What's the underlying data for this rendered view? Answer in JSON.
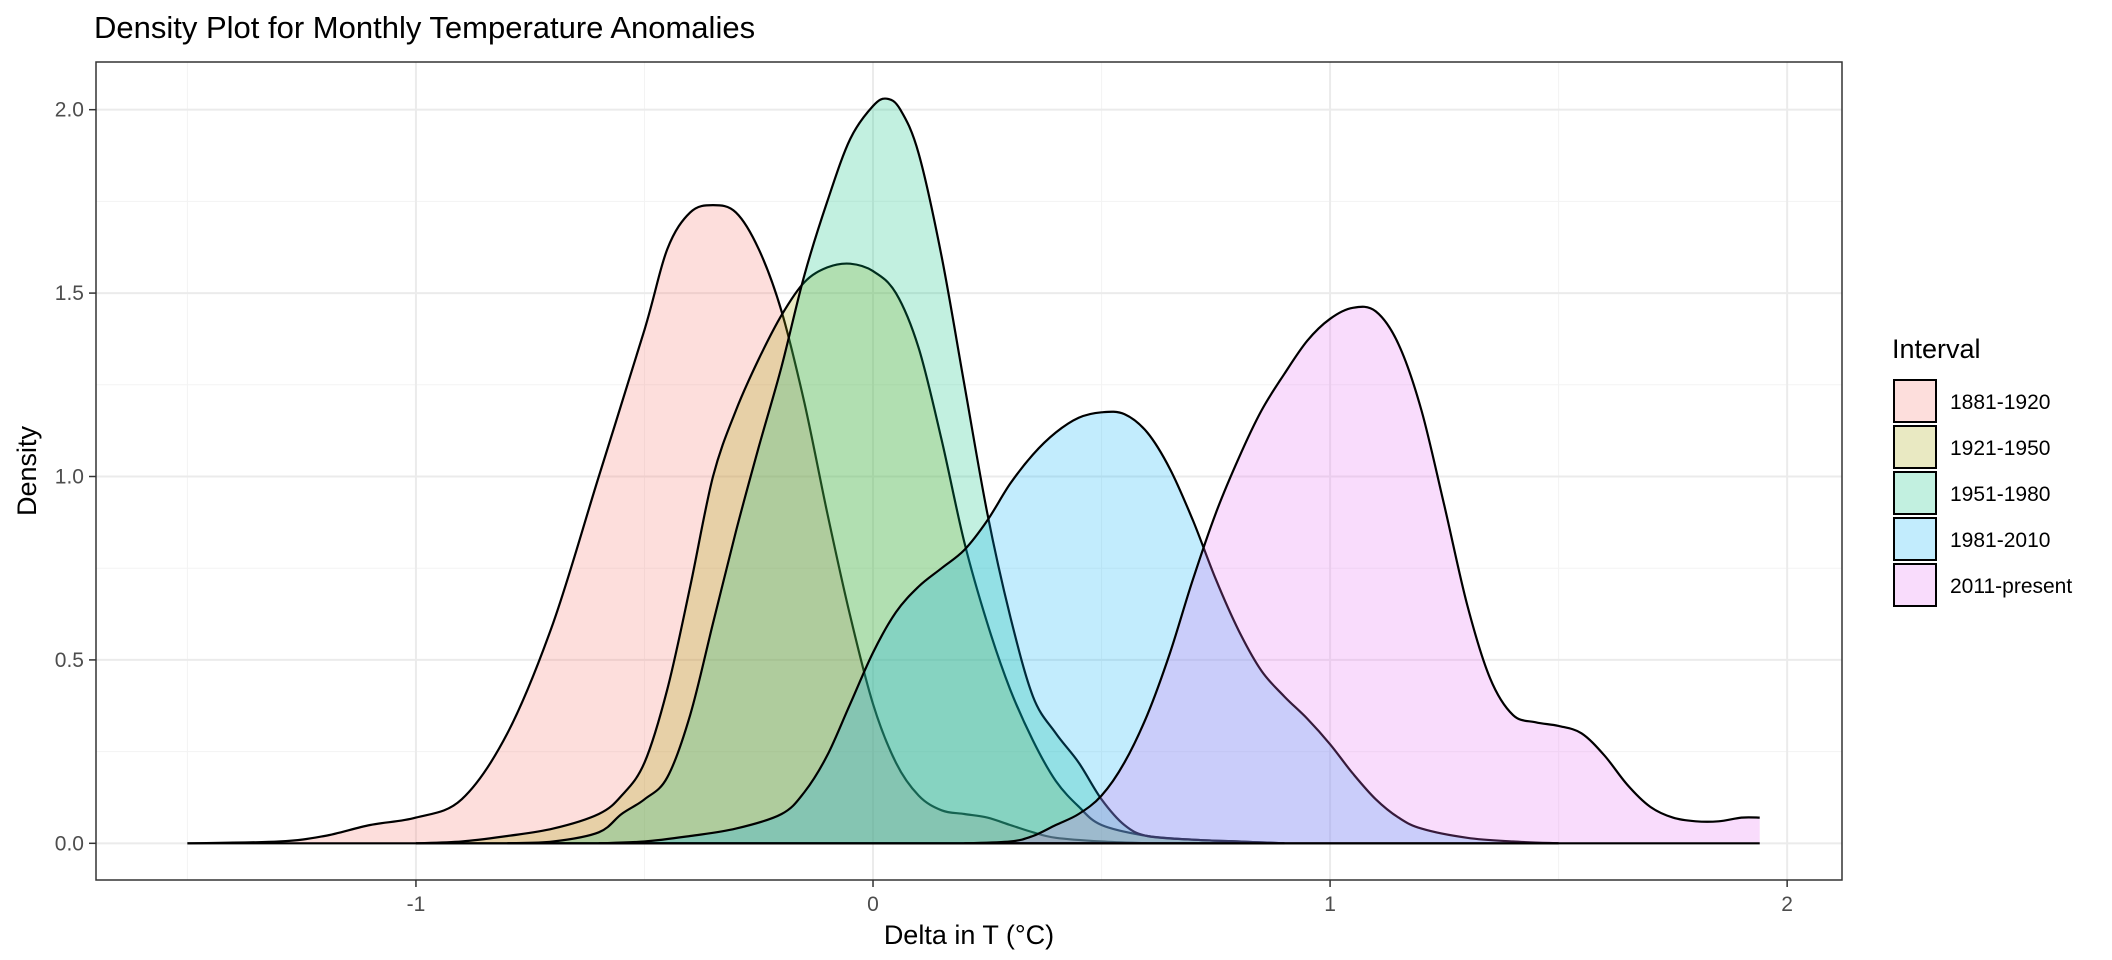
{
  "chart_data": {
    "type": "area",
    "title": "Density Plot for Monthly Temperature Anomalies",
    "xlabel": "Delta in T (°C)",
    "ylabel": "Density",
    "xlim": [
      -1.7,
      2.12
    ],
    "ylim": [
      -0.1,
      2.13
    ],
    "x_ticks": [
      "-1",
      "0",
      "1",
      "2"
    ],
    "y_ticks": [
      "0.0",
      "0.5",
      "1.0",
      "1.5",
      "2.0"
    ],
    "grid": true,
    "legend": {
      "title": "Interval",
      "position": "right"
    },
    "series": [
      {
        "name": "1881-1920",
        "color": "#F8766D",
        "points": [
          [
            -1.5,
            0
          ],
          [
            -1.3,
            0.005
          ],
          [
            -1.2,
            0.02
          ],
          [
            -1.1,
            0.05
          ],
          [
            -1.0,
            0.07
          ],
          [
            -0.9,
            0.12
          ],
          [
            -0.8,
            0.3
          ],
          [
            -0.7,
            0.6
          ],
          [
            -0.6,
            1.0
          ],
          [
            -0.5,
            1.4
          ],
          [
            -0.45,
            1.62
          ],
          [
            -0.4,
            1.72
          ],
          [
            -0.35,
            1.74
          ],
          [
            -0.3,
            1.72
          ],
          [
            -0.25,
            1.62
          ],
          [
            -0.2,
            1.45
          ],
          [
            -0.15,
            1.2
          ],
          [
            -0.1,
            0.9
          ],
          [
            -0.05,
            0.62
          ],
          [
            0,
            0.38
          ],
          [
            0.05,
            0.22
          ],
          [
            0.1,
            0.13
          ],
          [
            0.15,
            0.09
          ],
          [
            0.2,
            0.08
          ],
          [
            0.25,
            0.07
          ],
          [
            0.3,
            0.05
          ],
          [
            0.35,
            0.03
          ],
          [
            0.4,
            0.015
          ],
          [
            0.5,
            0.005
          ],
          [
            0.6,
            0
          ]
        ]
      },
      {
        "name": "1921-1950",
        "color": "#A3A500",
        "points": [
          [
            -1.0,
            0
          ],
          [
            -0.9,
            0.005
          ],
          [
            -0.8,
            0.02
          ],
          [
            -0.7,
            0.04
          ],
          [
            -0.6,
            0.08
          ],
          [
            -0.55,
            0.13
          ],
          [
            -0.5,
            0.22
          ],
          [
            -0.45,
            0.42
          ],
          [
            -0.4,
            0.7
          ],
          [
            -0.35,
            1.0
          ],
          [
            -0.3,
            1.18
          ],
          [
            -0.25,
            1.32
          ],
          [
            -0.2,
            1.44
          ],
          [
            -0.15,
            1.53
          ],
          [
            -0.1,
            1.57
          ],
          [
            -0.05,
            1.58
          ],
          [
            0,
            1.56
          ],
          [
            0.05,
            1.5
          ],
          [
            0.1,
            1.35
          ],
          [
            0.15,
            1.1
          ],
          [
            0.2,
            0.82
          ],
          [
            0.25,
            0.6
          ],
          [
            0.3,
            0.42
          ],
          [
            0.35,
            0.28
          ],
          [
            0.4,
            0.17
          ],
          [
            0.45,
            0.1
          ],
          [
            0.5,
            0.05
          ],
          [
            0.6,
            0.02
          ],
          [
            0.7,
            0.01
          ],
          [
            0.8,
            0.005
          ],
          [
            0.9,
            0
          ]
        ]
      },
      {
        "name": "1951-1980",
        "color": "#00BF7D",
        "points": [
          [
            -0.8,
            0
          ],
          [
            -0.7,
            0.005
          ],
          [
            -0.6,
            0.03
          ],
          [
            -0.55,
            0.08
          ],
          [
            -0.5,
            0.12
          ],
          [
            -0.45,
            0.18
          ],
          [
            -0.4,
            0.35
          ],
          [
            -0.35,
            0.6
          ],
          [
            -0.3,
            0.85
          ],
          [
            -0.25,
            1.08
          ],
          [
            -0.2,
            1.3
          ],
          [
            -0.15,
            1.55
          ],
          [
            -0.1,
            1.75
          ],
          [
            -0.05,
            1.92
          ],
          [
            0,
            2.01
          ],
          [
            0.03,
            2.03
          ],
          [
            0.06,
            2.0
          ],
          [
            0.1,
            1.88
          ],
          [
            0.15,
            1.6
          ],
          [
            0.2,
            1.25
          ],
          [
            0.25,
            0.9
          ],
          [
            0.3,
            0.62
          ],
          [
            0.35,
            0.4
          ],
          [
            0.4,
            0.3
          ],
          [
            0.45,
            0.22
          ],
          [
            0.5,
            0.12
          ],
          [
            0.55,
            0.05
          ],
          [
            0.6,
            0.02
          ],
          [
            0.7,
            0.01
          ],
          [
            0.8,
            0.005
          ],
          [
            0.9,
            0
          ]
        ]
      },
      {
        "name": "1981-2010",
        "color": "#00B0F6",
        "points": [
          [
            -0.6,
            0
          ],
          [
            -0.5,
            0.005
          ],
          [
            -0.4,
            0.02
          ],
          [
            -0.3,
            0.04
          ],
          [
            -0.2,
            0.08
          ],
          [
            -0.15,
            0.14
          ],
          [
            -0.1,
            0.24
          ],
          [
            -0.05,
            0.38
          ],
          [
            0,
            0.52
          ],
          [
            0.05,
            0.63
          ],
          [
            0.1,
            0.7
          ],
          [
            0.15,
            0.75
          ],
          [
            0.2,
            0.8
          ],
          [
            0.25,
            0.88
          ],
          [
            0.3,
            0.98
          ],
          [
            0.35,
            1.06
          ],
          [
            0.4,
            1.12
          ],
          [
            0.45,
            1.16
          ],
          [
            0.5,
            1.175
          ],
          [
            0.55,
            1.17
          ],
          [
            0.6,
            1.12
          ],
          [
            0.65,
            1.02
          ],
          [
            0.7,
            0.88
          ],
          [
            0.75,
            0.72
          ],
          [
            0.8,
            0.58
          ],
          [
            0.85,
            0.47
          ],
          [
            0.9,
            0.4
          ],
          [
            0.95,
            0.34
          ],
          [
            1.0,
            0.27
          ],
          [
            1.05,
            0.19
          ],
          [
            1.1,
            0.12
          ],
          [
            1.15,
            0.07
          ],
          [
            1.2,
            0.04
          ],
          [
            1.3,
            0.015
          ],
          [
            1.4,
            0.005
          ],
          [
            1.5,
            0
          ]
        ]
      },
      {
        "name": "2011-present",
        "color": "#E76BF3",
        "points": [
          [
            0.2,
            0
          ],
          [
            0.3,
            0.005
          ],
          [
            0.35,
            0.02
          ],
          [
            0.4,
            0.05
          ],
          [
            0.45,
            0.08
          ],
          [
            0.5,
            0.13
          ],
          [
            0.55,
            0.22
          ],
          [
            0.6,
            0.35
          ],
          [
            0.65,
            0.52
          ],
          [
            0.7,
            0.72
          ],
          [
            0.75,
            0.9
          ],
          [
            0.8,
            1.05
          ],
          [
            0.85,
            1.18
          ],
          [
            0.9,
            1.28
          ],
          [
            0.95,
            1.37
          ],
          [
            1.0,
            1.43
          ],
          [
            1.05,
            1.46
          ],
          [
            1.1,
            1.45
          ],
          [
            1.15,
            1.36
          ],
          [
            1.2,
            1.18
          ],
          [
            1.25,
            0.92
          ],
          [
            1.3,
            0.65
          ],
          [
            1.35,
            0.45
          ],
          [
            1.4,
            0.35
          ],
          [
            1.45,
            0.33
          ],
          [
            1.5,
            0.32
          ],
          [
            1.55,
            0.3
          ],
          [
            1.6,
            0.24
          ],
          [
            1.65,
            0.16
          ],
          [
            1.7,
            0.1
          ],
          [
            1.75,
            0.07
          ],
          [
            1.8,
            0.06
          ],
          [
            1.85,
            0.06
          ],
          [
            1.9,
            0.07
          ],
          [
            1.94,
            0.07
          ]
        ]
      }
    ]
  }
}
